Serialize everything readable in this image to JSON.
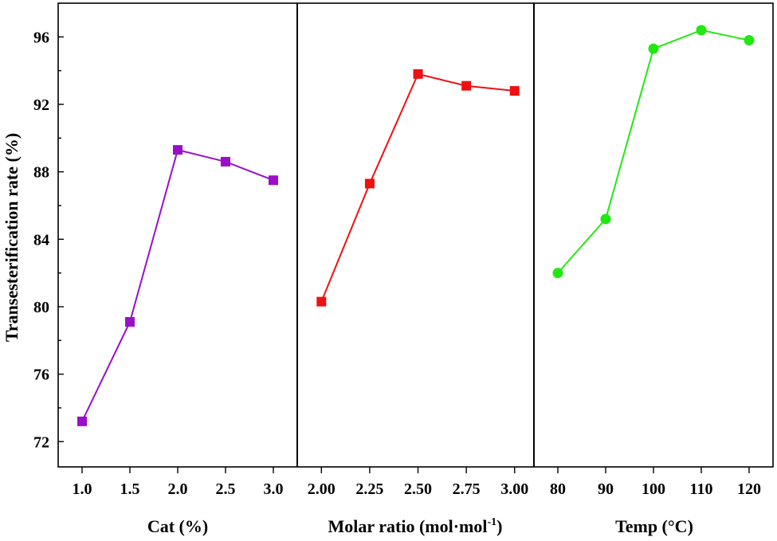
{
  "chart_data": {
    "type": "line",
    "ylabel": "Transesterification rate (%)",
    "ylim": [
      70.5,
      98.0
    ],
    "yticks": [
      72,
      76,
      80,
      84,
      88,
      92,
      96
    ],
    "grid": false,
    "panels": [
      {
        "xlabel": "Cat (%)",
        "xlim": [
          0.75,
          3.25
        ],
        "xticks": [
          "1.0",
          "1.5",
          "2.0",
          "2.5",
          "3.0"
        ],
        "series": [
          {
            "color": "#9b0fc8",
            "marker": "square",
            "x": [
              1.0,
              1.5,
              2.0,
              2.5,
              3.0
            ],
            "y": [
              73.2,
              79.1,
              89.3,
              88.6,
              87.5
            ]
          }
        ]
      },
      {
        "xlabel_main": "Molar ratio (mol·mol",
        "xlabel_sup": "-1",
        "xlabel_end": ")",
        "xlim": [
          1.875,
          3.1
        ],
        "xticks": [
          "2.00",
          "2.25",
          "2.50",
          "2.75",
          "3.00"
        ],
        "series": [
          {
            "color": "#ee1111",
            "marker": "square",
            "x": [
              2.0,
              2.25,
              2.5,
              2.75,
              3.0
            ],
            "y": [
              80.3,
              87.3,
              93.8,
              93.1,
              92.8
            ]
          }
        ]
      },
      {
        "xlabel": "Temp (°C)",
        "xlim": [
          75,
          125
        ],
        "xticks": [
          "80",
          "90",
          "100",
          "110",
          "120"
        ],
        "series": [
          {
            "color": "#22e811",
            "marker": "circle",
            "x": [
              80,
              90,
              100,
              110,
              120
            ],
            "y": [
              82.0,
              85.2,
              95.3,
              96.4,
              95.8
            ]
          }
        ]
      }
    ]
  }
}
